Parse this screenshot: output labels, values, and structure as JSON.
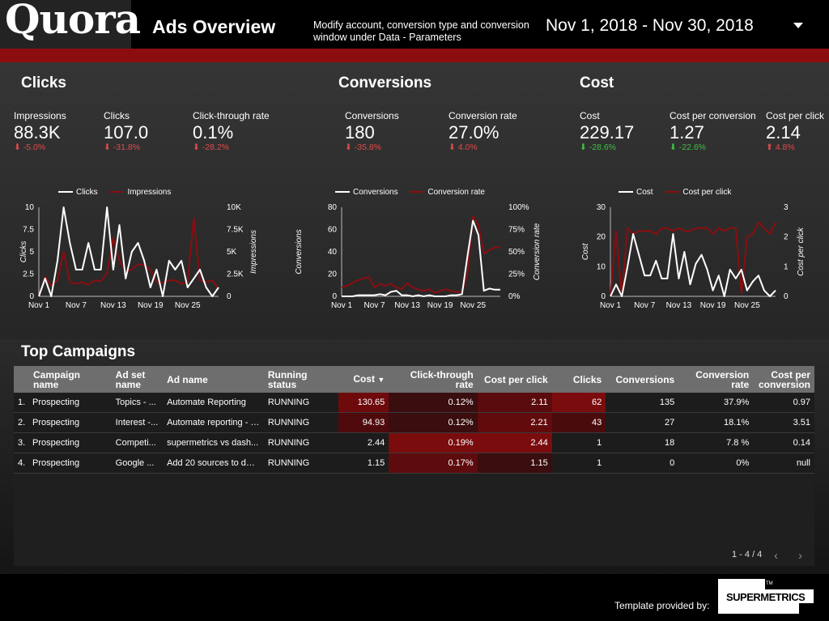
{
  "header": {
    "logo": "Quora",
    "title": "Ads Overview",
    "subtitle": "Modify account, conversion type and conversion window under Data - Parameters",
    "date_range": "Nov 1, 2018 - Nov 30, 2018"
  },
  "colors": {
    "accent": "#8b0d10",
    "negative": "#e04a4a",
    "positive": "#3ec043"
  },
  "sections": {
    "clicks": {
      "title": "Clicks",
      "kpis": [
        {
          "label": "Impressions",
          "value": "88.3K",
          "delta": "-5.0%",
          "dir": "down"
        },
        {
          "label": "Clicks",
          "value": "107.0",
          "delta": "-31.8%",
          "dir": "down"
        },
        {
          "label": "Click-through rate",
          "value": "0.1%",
          "delta": "-28.2%",
          "dir": "down"
        }
      ]
    },
    "conversions": {
      "title": "Conversions",
      "kpis": [
        {
          "label": "Conversions",
          "value": "180",
          "delta": "-35.8%",
          "dir": "down"
        },
        {
          "label": "Conversion rate",
          "value": "27.0%",
          "delta": "4.0%",
          "dir": "down"
        }
      ]
    },
    "cost": {
      "title": "Cost",
      "kpis": [
        {
          "label": "Cost",
          "value": "229.17",
          "delta": "-28.6%",
          "dir": "down"
        },
        {
          "label": "Cost per conversion",
          "value": "1.27",
          "delta": "-22.6%",
          "dir": "down"
        },
        {
          "label": "Cost per click",
          "value": "2.14",
          "delta": "4.8%",
          "dir": "up"
        }
      ]
    }
  },
  "chart_data": [
    {
      "type": "line",
      "title": "Clicks",
      "x_ticks": [
        "Nov 1",
        "Nov 7",
        "Nov 13",
        "Nov 19",
        "Nov 25"
      ],
      "ylabel": "Clicks",
      "ylabel_right": "Impressions",
      "y_ticks_left": [
        "10",
        "7.5",
        "5",
        "2.5",
        "0"
      ],
      "y_ticks_right": [
        "10K",
        "7.5K",
        "5K",
        "2.5K",
        "0"
      ],
      "ylim": [
        0,
        10
      ],
      "ylim_right": [
        0,
        10000
      ],
      "series": [
        {
          "name": "Clicks",
          "axis": "left",
          "color": "#ffffff",
          "values": [
            0,
            2,
            0,
            4,
            10,
            6,
            3,
            3,
            6,
            3,
            3,
            10,
            3,
            8,
            2,
            5,
            6,
            4,
            1,
            3,
            0,
            4,
            3,
            4,
            1,
            2,
            3,
            1,
            0,
            1
          ]
        },
        {
          "name": "Impressions",
          "axis": "right",
          "color": "#8b0d10",
          "values": [
            0,
            2200,
            1200,
            1800,
            5000,
            1600,
            1400,
            1600,
            1300,
            1800,
            1700,
            2600,
            6600,
            4000,
            2800,
            3000,
            3600,
            3500,
            3000,
            1600,
            1500,
            1800,
            1800,
            1400,
            1600,
            8800,
            1800,
            1600,
            1800,
            800
          ]
        }
      ]
    },
    {
      "type": "line",
      "title": "Conversions",
      "x_ticks": [
        "Nov 1",
        "Nov 7",
        "Nov 13",
        "Nov 19",
        "Nov 25"
      ],
      "ylabel": "Conversions",
      "ylabel_right": "Conversion rate",
      "y_ticks_left": [
        "80",
        "60",
        "40",
        "20",
        "0"
      ],
      "y_ticks_right": [
        "100%",
        "75%",
        "50%",
        "25%",
        "0%"
      ],
      "ylim": [
        0,
        80
      ],
      "ylim_right": [
        0,
        100
      ],
      "series": [
        {
          "name": "Conversions",
          "axis": "left",
          "color": "#ffffff",
          "values": [
            0,
            0,
            0,
            1,
            1,
            1,
            1,
            2,
            1,
            4,
            5,
            1,
            1,
            0,
            1,
            0,
            1,
            0,
            0,
            0,
            1,
            1,
            2,
            36,
            68,
            55,
            5,
            7,
            6,
            6
          ]
        },
        {
          "name": "Conversion rate",
          "axis": "right",
          "color": "#8b0d10",
          "values": [
            10,
            12,
            15,
            18,
            20,
            22,
            10,
            14,
            12,
            14,
            10,
            8,
            15,
            10,
            8,
            6,
            8,
            4,
            6,
            8,
            6,
            5,
            5,
            25,
            90,
            80,
            48,
            52,
            55,
            55
          ]
        }
      ]
    },
    {
      "type": "line",
      "title": "Cost",
      "x_ticks": [
        "Nov 1",
        "Nov 7",
        "Nov 13",
        "Nov 19",
        "Nov 25"
      ],
      "ylabel": "Cost",
      "ylabel_right": "Cost per click",
      "y_ticks_left": [
        "30",
        "20",
        "10",
        "0"
      ],
      "y_ticks_right": [
        "3",
        "2",
        "1",
        "0"
      ],
      "ylim": [
        0,
        30
      ],
      "ylim_right": [
        0,
        3
      ],
      "series": [
        {
          "name": "Cost",
          "axis": "left",
          "color": "#ffffff",
          "values": [
            0,
            4,
            0,
            10,
            21,
            14,
            7,
            7,
            12,
            6,
            6,
            21,
            6,
            15,
            4,
            11,
            14,
            9,
            2,
            7,
            0,
            9,
            6,
            9,
            2,
            5,
            7,
            2,
            0,
            2
          ]
        },
        {
          "name": "Cost per click",
          "axis": "right",
          "color": "#8b0d10",
          "values": [
            0,
            2.2,
            0,
            2.3,
            2.1,
            2.2,
            2.2,
            2.2,
            2.1,
            2.3,
            2.3,
            2.2,
            2.3,
            2.2,
            2.2,
            2.3,
            2.3,
            2.3,
            2.1,
            2.3,
            2.2,
            2.3,
            2.3,
            0.1,
            2.0,
            2.1,
            2.5,
            2.3,
            2.1,
            2.5
          ]
        }
      ]
    }
  ],
  "table": {
    "title": "Top Campaigns",
    "columns": [
      "Campaign name",
      "Ad set name",
      "Ad name",
      "Running status",
      "Cost",
      "Click-through rate",
      "Cost per click",
      "Clicks",
      "Conversions",
      "Conversion rate",
      "Cost per conversion"
    ],
    "sort_indicator": "▼",
    "rows": [
      {
        "idx": "1.",
        "campaign": "Prospecting",
        "adset": "Topics - ...",
        "ad": "Automate Reporting",
        "status": "RUNNING",
        "cost": "130.65",
        "ctr": "0.12%",
        "cpc": "2.11",
        "clicks": "62",
        "conv": "135",
        "conv_rate": "37.9%",
        "cpconv": "0.97"
      },
      {
        "idx": "2.",
        "campaign": "Prospecting",
        "adset": "Interest -...",
        "ad": "Automate reporting - i...",
        "status": "RUNNING",
        "cost": "94.93",
        "ctr": "0.12%",
        "cpc": "2.21",
        "clicks": "43",
        "conv": "27",
        "conv_rate": "18.1%",
        "cpconv": "3.51"
      },
      {
        "idx": "3.",
        "campaign": "Prospecting",
        "adset": "Competi...",
        "ad": "supermetrics vs dash...",
        "status": "RUNNING",
        "cost": "2.44",
        "ctr": "0.19%",
        "cpc": "2.44",
        "clicks": "1",
        "conv": "18",
        "conv_rate": "7.8 %",
        "cpconv": "0.14"
      },
      {
        "idx": "4.",
        "campaign": "Prospecting",
        "adset": "Google ...",
        "ad": "Add 20 sources to dat...",
        "status": "RUNNING",
        "cost": "1.15",
        "ctr": "0.17%",
        "cpc": "1.15",
        "clicks": "1",
        "conv": "0",
        "conv_rate": "0%",
        "cpconv": "null"
      }
    ],
    "heat": {
      "cost": [
        "#6e0a0c",
        "#4e0a0c",
        "#1c1c1c",
        "#1c1c1c"
      ],
      "ctr": [
        "#3a0d0e",
        "#3a0d0e",
        "#7a0c0e",
        "#5e0b0d"
      ],
      "cpc": [
        "#5a0b0d",
        "#620b0d",
        "#7a0c0e",
        "#3a0d0e"
      ],
      "clicks": [
        "#7a0c0e",
        "#4a0b0d",
        "#1c1c1c",
        "#1c1c1c"
      ]
    },
    "pager": "1 - 4 / 4"
  },
  "footer": {
    "text": "Template provided by:",
    "brand": "SUPERMETRICS",
    "tm": "TM"
  }
}
